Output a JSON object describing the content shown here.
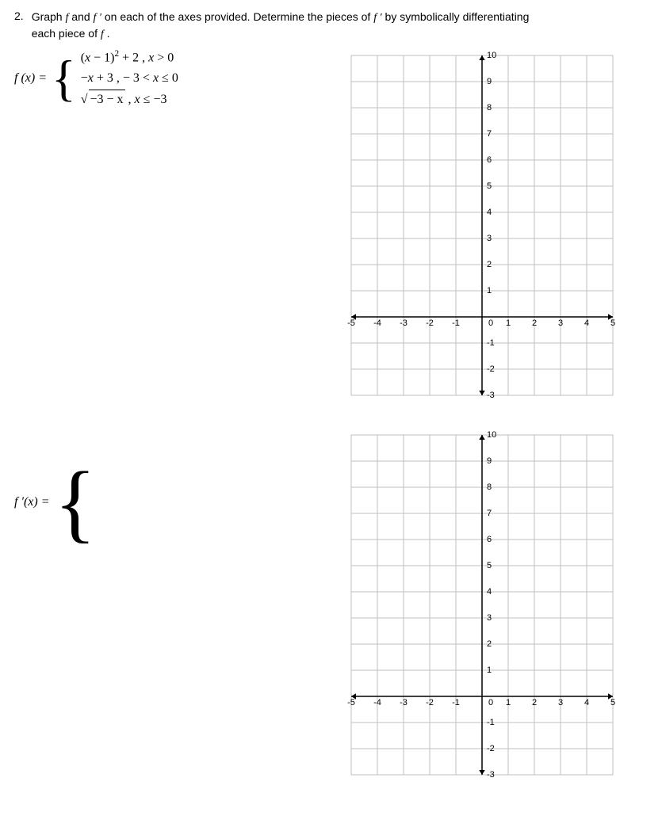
{
  "problem": {
    "number": "2.",
    "text1": "Graph ",
    "f": "f",
    "text2": " and ",
    "fprime": "f ′",
    "text3": " on each of the axes provided.  Determine the pieces of ",
    "fprime2": "f ′",
    "text4": " by symbolically differentiating",
    "text5": "each piece of ",
    "f2": "f",
    "period": " ."
  },
  "definition": {
    "lhs": "f (x) =",
    "piece1": {
      "expr_a": "(",
      "x1": "x",
      "expr_b": " − 1)",
      "sq": "2",
      "expr_c": " + 2 ,   ",
      "x2": "x",
      "cond": " > 0"
    },
    "piece2": {
      "minus": "−",
      "x1": "x",
      "plus3": " + 3  ,  − 3 < ",
      "x2": "x",
      "le0": " ≤ 0"
    },
    "piece3": {
      "rad_arg_a": "−3 − ",
      "rad_x": "x",
      "comma": "  ,   ",
      "x2": "x",
      "le": " ≤ −3"
    }
  },
  "derivative": {
    "lhs": "f ′(x) ="
  },
  "grid": {
    "xmin": -5,
    "xmax": 5,
    "ymin": -3,
    "ymax": 10,
    "xticks": [
      -5,
      -4,
      -3,
      -2,
      -1,
      0,
      1,
      2,
      3,
      4,
      5
    ],
    "yticks": [
      -3,
      -2,
      -1,
      0,
      1,
      2,
      3,
      4,
      5,
      6,
      7,
      8,
      9,
      10
    ],
    "xlabels": [
      "-5",
      "-4",
      "-3",
      "-2",
      "-1",
      "0",
      "1",
      "2",
      "3",
      "4",
      "5"
    ],
    "ylabels": [
      "-3",
      "-2",
      "-1",
      "",
      "1",
      "2",
      "3",
      "4",
      "5",
      "6",
      "7",
      "8",
      "9",
      "10"
    ],
    "cell": 33,
    "axis_color": "#000000",
    "grid_color": "#bfbfbf",
    "label_color": "#000000",
    "label_fontsize": 11,
    "arrow": 6
  }
}
